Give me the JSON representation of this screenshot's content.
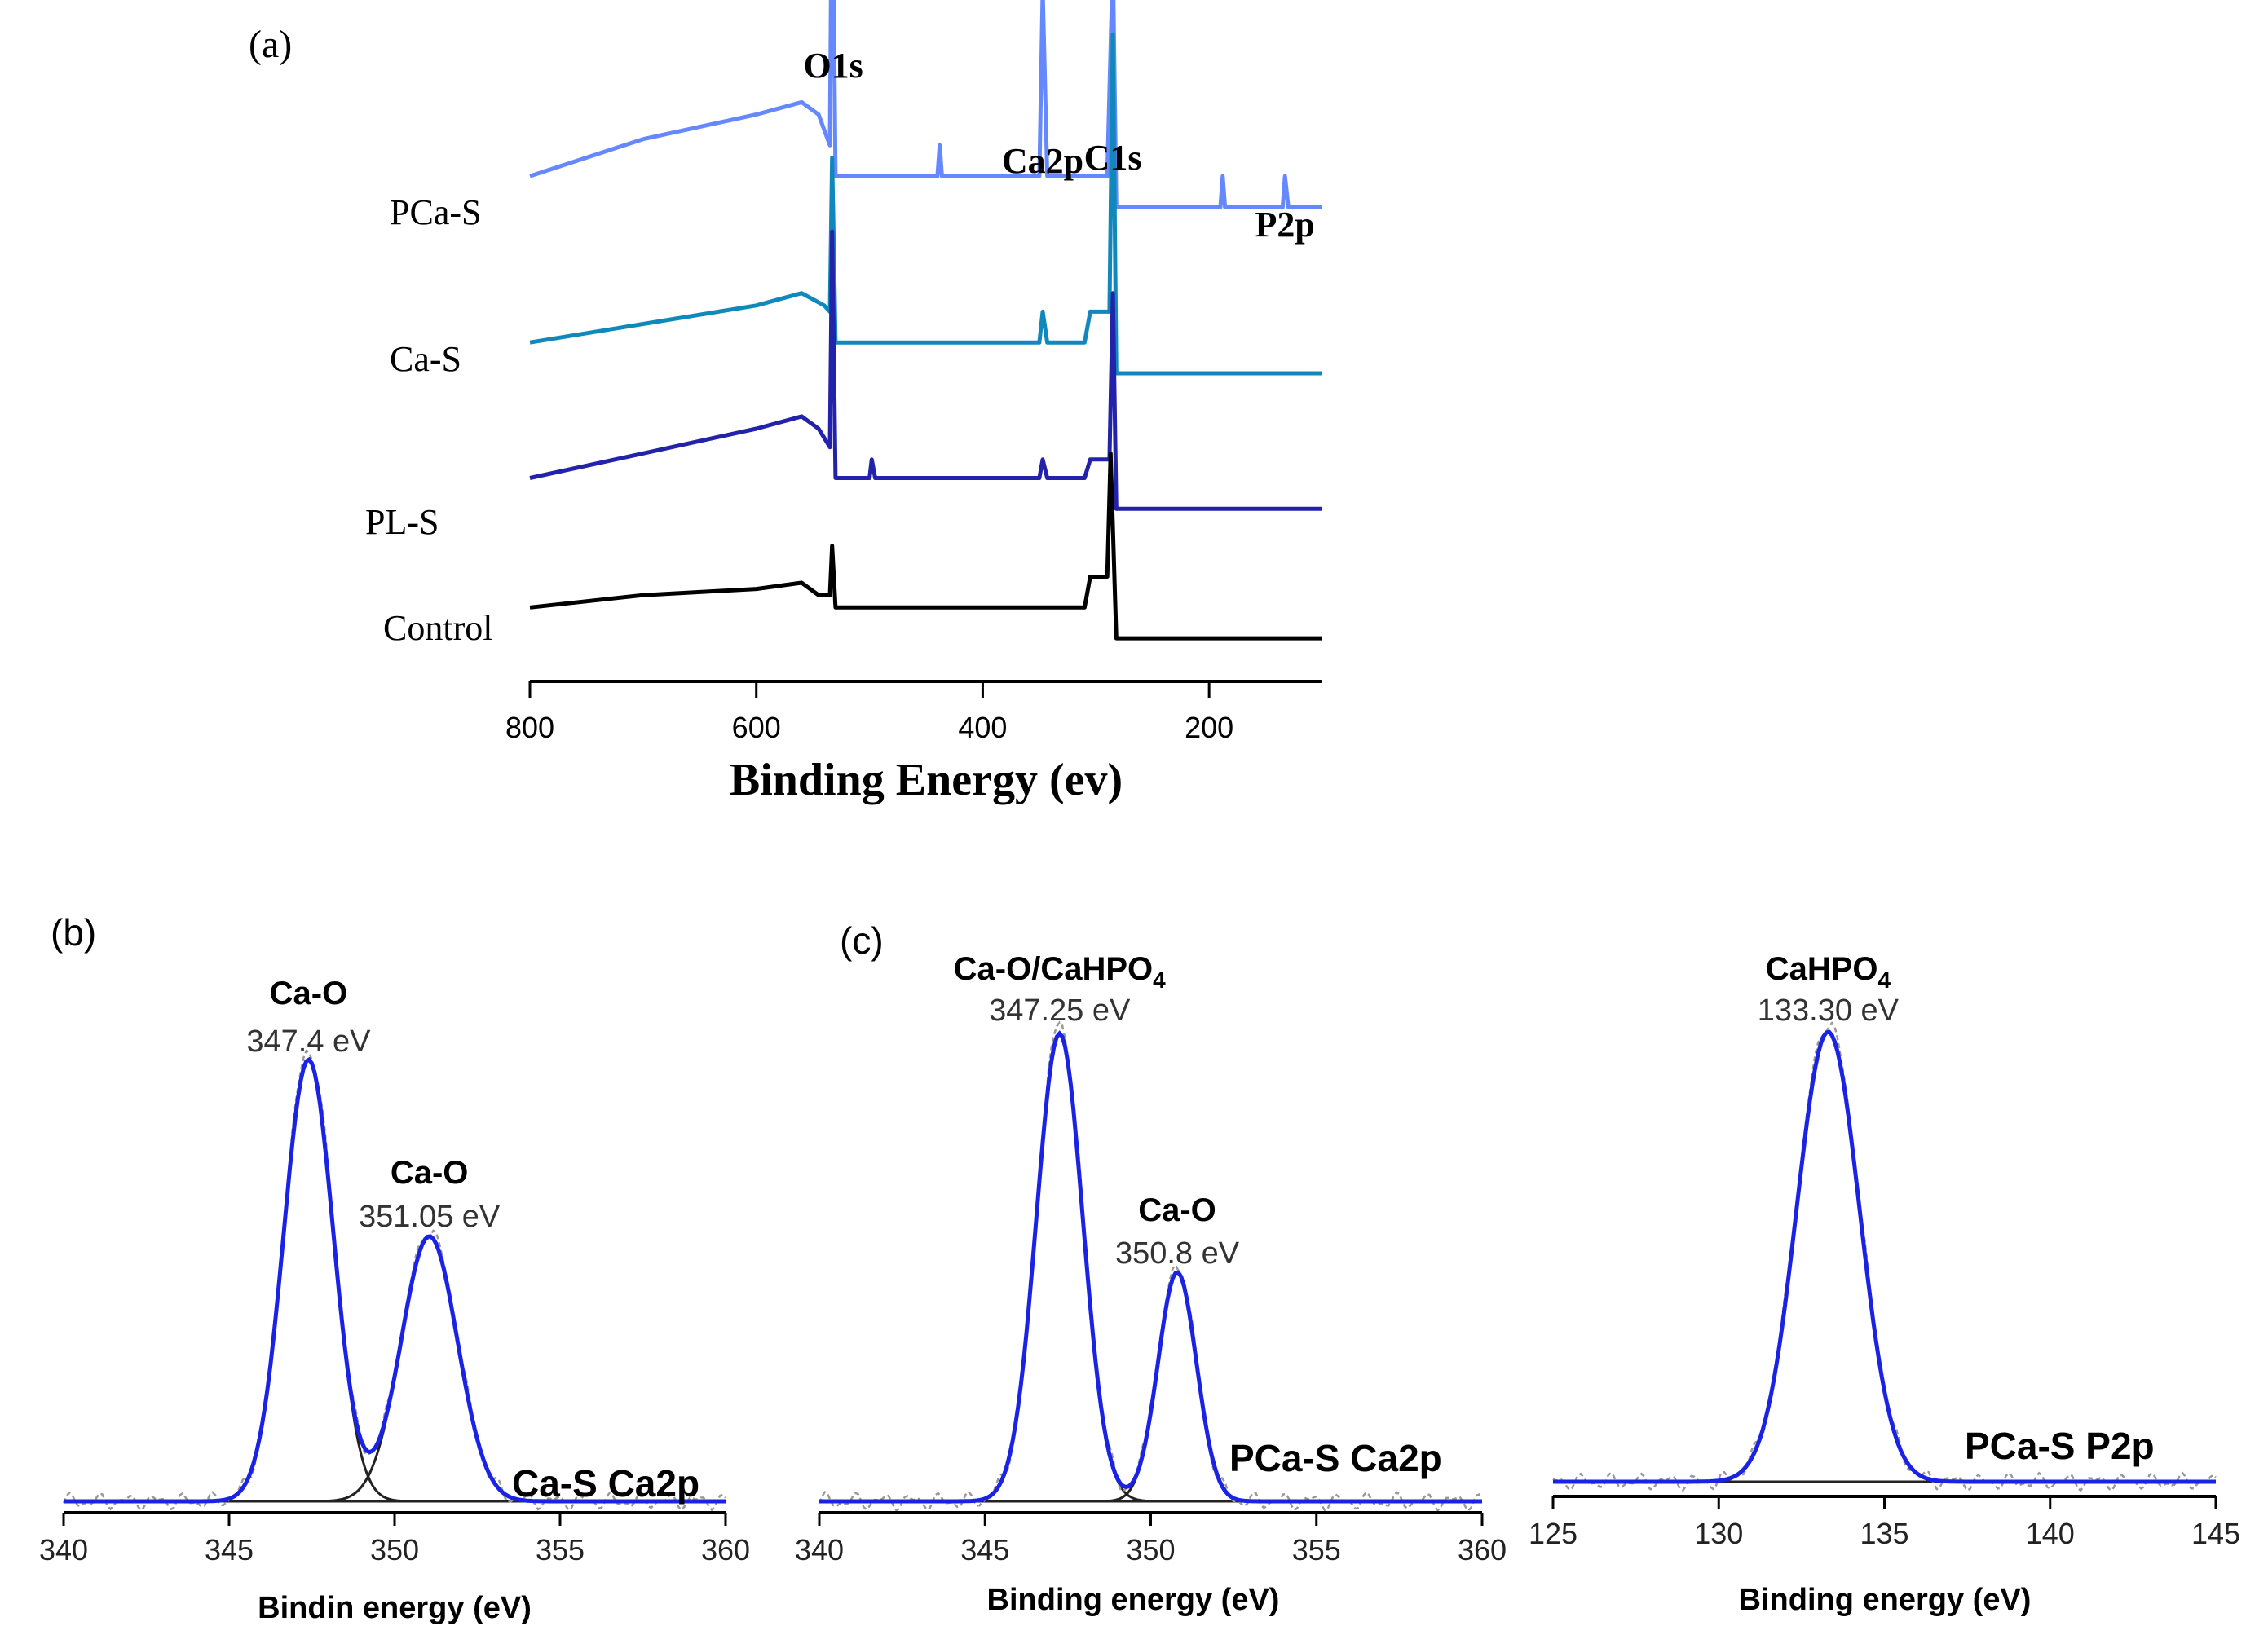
{
  "chart_data": [
    {
      "panel": "(a)",
      "type": "line",
      "xlabel": "Binding Energy (ev)",
      "ylabel": "",
      "xlim": [
        800,
        100
      ],
      "x_ticks": [
        800,
        600,
        400,
        200
      ],
      "peak_labels": [
        {
          "text": "O1s",
          "x": 532
        },
        {
          "text": "Ca2p",
          "x": 347
        },
        {
          "text": "C1s",
          "x": 285
        },
        {
          "text": "P2p",
          "x": 133
        }
      ],
      "series": [
        {
          "name": "PCa-S",
          "color": "#6688ff",
          "base_level": 0.82,
          "points": [
            [
              800,
              0.0
            ],
            [
              700,
              0.06
            ],
            [
              600,
              0.1
            ],
            [
              560,
              0.12
            ],
            [
              545,
              0.1
            ],
            [
              535,
              0.05
            ],
            [
              533,
              0.55
            ],
            [
              530,
              0.0
            ],
            [
              440,
              0.0
            ],
            [
              438,
              0.05
            ],
            [
              436,
              0.0
            ],
            [
              350,
              0.0
            ],
            [
              347,
              0.3
            ],
            [
              343,
              0.0
            ],
            [
              290,
              0.0
            ],
            [
              285,
              0.35
            ],
            [
              282,
              -0.05
            ],
            [
              190,
              -0.05
            ],
            [
              188,
              0.0
            ],
            [
              186,
              -0.05
            ],
            [
              135,
              -0.05
            ],
            [
              133,
              0.0
            ],
            [
              130,
              -0.05
            ],
            [
              100,
              -0.05
            ]
          ]
        },
        {
          "name": "Ca-S",
          "color": "#1188bb",
          "base_level": 0.55,
          "points": [
            [
              800,
              0.0
            ],
            [
              700,
              0.03
            ],
            [
              600,
              0.06
            ],
            [
              560,
              0.08
            ],
            [
              540,
              0.06
            ],
            [
              535,
              0.05
            ],
            [
              533,
              0.3
            ],
            [
              530,
              0.0
            ],
            [
              350,
              0.0
            ],
            [
              347,
              0.05
            ],
            [
              343,
              0.0
            ],
            [
              310,
              0.0
            ],
            [
              305,
              0.05
            ],
            [
              288,
              0.05
            ],
            [
              285,
              0.5
            ],
            [
              282,
              -0.05
            ],
            [
              100,
              -0.05
            ]
          ]
        },
        {
          "name": "PL-S",
          "color": "#2222aa",
          "base_level": 0.33,
          "points": [
            [
              800,
              0.0
            ],
            [
              700,
              0.04
            ],
            [
              600,
              0.08
            ],
            [
              560,
              0.1
            ],
            [
              545,
              0.08
            ],
            [
              535,
              0.05
            ],
            [
              533,
              0.4
            ],
            [
              530,
              0.0
            ],
            [
              500,
              0.0
            ],
            [
              498,
              0.03
            ],
            [
              495,
              0.0
            ],
            [
              350,
              0.0
            ],
            [
              347,
              0.03
            ],
            [
              343,
              0.0
            ],
            [
              310,
              0.0
            ],
            [
              305,
              0.03
            ],
            [
              288,
              0.03
            ],
            [
              285,
              0.3
            ],
            [
              282,
              -0.05
            ],
            [
              100,
              -0.05
            ]
          ]
        },
        {
          "name": "Control",
          "color": "#000000",
          "base_level": 0.12,
          "points": [
            [
              800,
              0.0
            ],
            [
              700,
              0.02
            ],
            [
              600,
              0.03
            ],
            [
              560,
              0.04
            ],
            [
              545,
              0.02
            ],
            [
              535,
              0.02
            ],
            [
              533,
              0.1
            ],
            [
              530,
              0.0
            ],
            [
              350,
              0.0
            ],
            [
              310,
              0.0
            ],
            [
              305,
              0.05
            ],
            [
              290,
              0.05
            ],
            [
              287,
              0.25
            ],
            [
              282,
              -0.05
            ],
            [
              100,
              -0.05
            ]
          ]
        }
      ],
      "series_labels": [
        "PCa-S",
        "Ca-S",
        "PL-S",
        "Control"
      ]
    },
    {
      "panel": "(b)",
      "type": "line",
      "xlabel": "Bindin energy (eV)",
      "ylabel": "",
      "xlim": [
        340,
        360
      ],
      "x_ticks": [
        340,
        345,
        350,
        355,
        360
      ],
      "corner_label": "Ca-S Ca2p",
      "peaks": [
        {
          "name": "Ca-O",
          "label": "347.4 eV",
          "center": 347.4,
          "height": 1.0,
          "sigma": 0.75
        },
        {
          "name": "Ca-O",
          "label": "351.05 eV",
          "center": 351.05,
          "height": 0.6,
          "sigma": 0.85
        }
      ]
    },
    {
      "panel": "(c)",
      "type": "line",
      "xlabel": "Binding energy (eV)",
      "ylabel": "",
      "xlim": [
        340,
        360
      ],
      "x_ticks": [
        340,
        345,
        350,
        355,
        360
      ],
      "corner_label": "PCa-S Ca2p",
      "peaks": [
        {
          "name": "Ca-O/CaHPO",
          "name_sub": "4",
          "label": "347.25 eV",
          "center": 347.25,
          "height": 1.0,
          "sigma": 0.7
        },
        {
          "name": "Ca-O",
          "label": "350.8 eV",
          "center": 350.8,
          "height": 0.49,
          "sigma": 0.58
        }
      ]
    },
    {
      "panel": "",
      "type": "line",
      "xlabel": "Binding energy (eV)",
      "ylabel": "",
      "xlim": [
        125,
        145
      ],
      "x_ticks": [
        125,
        130,
        135,
        140,
        145
      ],
      "corner_label": "PCa-S P2p",
      "peaks": [
        {
          "name": "CaHPO",
          "name_sub": "4",
          "label": "133.30 eV",
          "center": 133.3,
          "height": 1.0,
          "sigma": 0.95
        }
      ]
    }
  ]
}
